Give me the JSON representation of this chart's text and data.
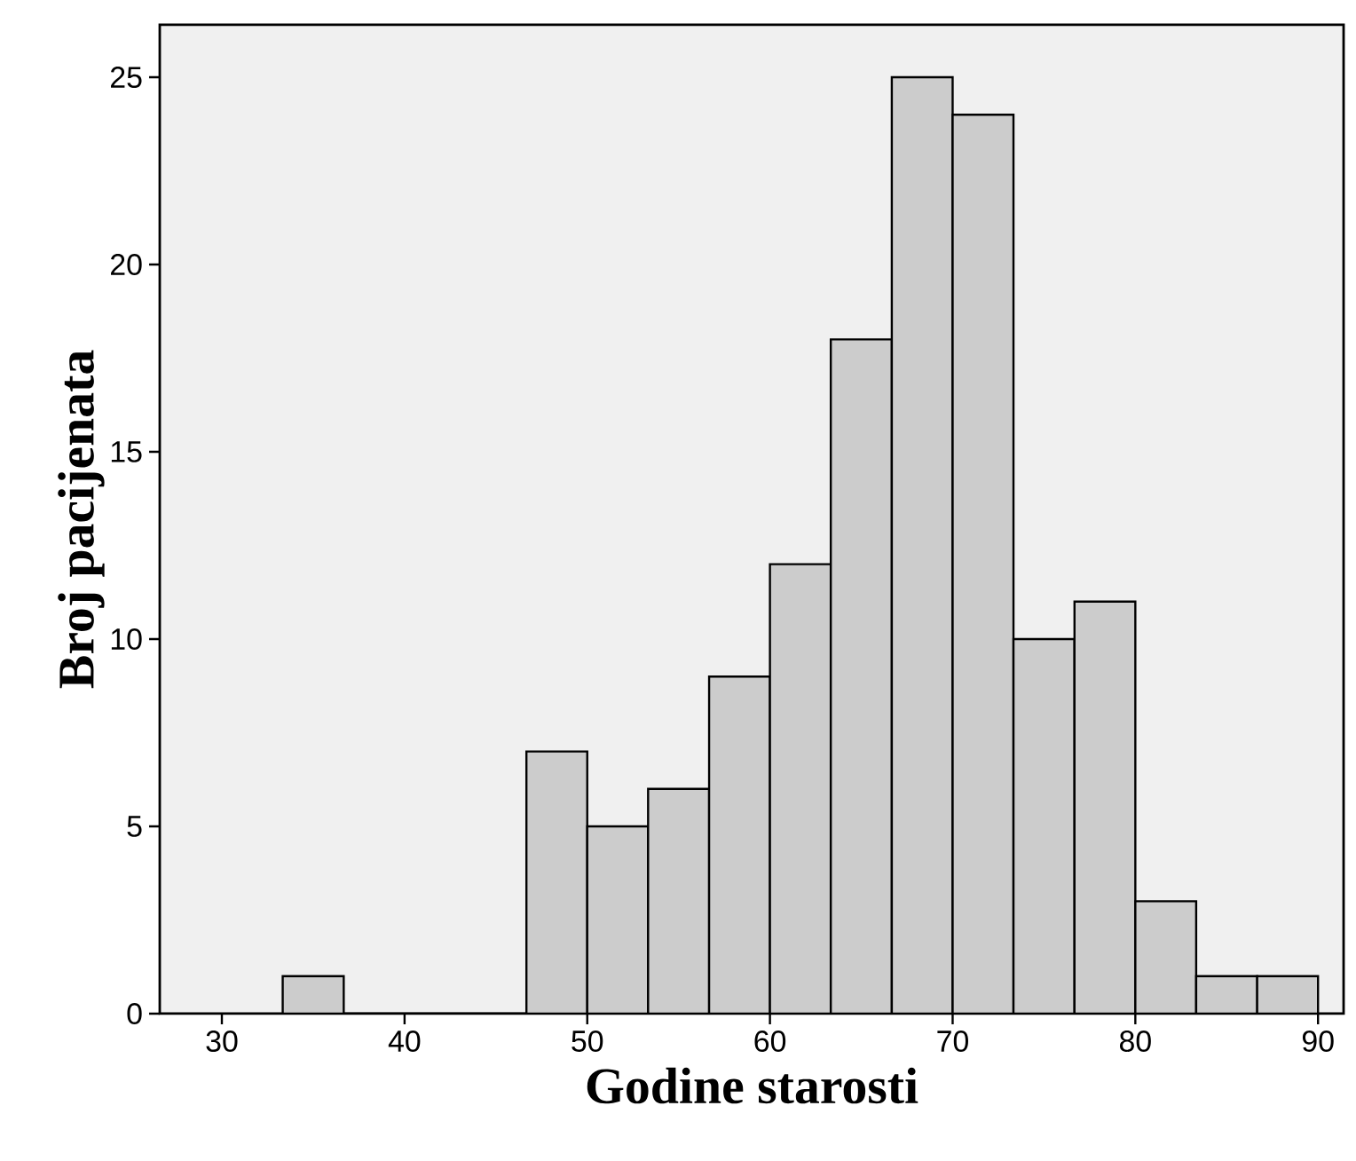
{
  "chart_data": {
    "type": "histogram",
    "xlabel": "Godine starosti",
    "ylabel": "Broj pacijenata",
    "bins": [
      33.33,
      36.67,
      40,
      43.33,
      46.67,
      50,
      53.33,
      56.67,
      60,
      63.33,
      66.67,
      70,
      73.33,
      76.67,
      80,
      83.33,
      86.67,
      90
    ],
    "values": [
      1,
      0,
      0,
      0,
      7,
      5,
      6,
      9,
      12,
      18,
      25,
      24,
      10,
      11,
      3,
      1,
      1
    ],
    "color": "#cccccc",
    "xlim": [
      26.6,
      91.4
    ],
    "ylim": [
      0,
      26.4
    ],
    "xticks": [
      30,
      40,
      50,
      60,
      70,
      80,
      90
    ],
    "yticks": [
      0,
      5,
      10,
      15,
      20,
      25
    ]
  }
}
